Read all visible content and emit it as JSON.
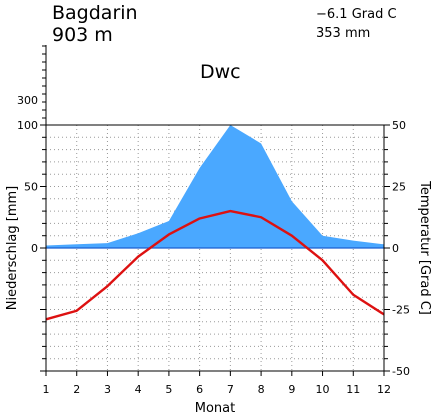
{
  "header": {
    "station": "Bagdarin",
    "elevation": "903 m",
    "mean_temperature": "−6.1 Grad C",
    "annual_precipitation": "353 mm",
    "climate_class": "Dwc"
  },
  "chart_data": {
    "type": "area",
    "xlabel": "Monat",
    "ylabel_left": "Niederschlag [mm]",
    "ylabel_right": "Temperatur [Grad C]",
    "x": [
      1,
      2,
      3,
      4,
      5,
      6,
      7,
      8,
      9,
      10,
      11,
      12
    ],
    "x_tick_labels": [
      "1",
      "2",
      "3",
      "4",
      "5",
      "6",
      "7",
      "8",
      "9",
      "10",
      "11",
      "12"
    ],
    "left_axis": {
      "ylim": [
        -100,
        100
      ],
      "ticks": [
        "0",
        "50",
        "100"
      ],
      "upper_scale_tick": "300"
    },
    "right_axis": {
      "ylim": [
        -50,
        50
      ],
      "ticks": [
        "-50",
        "-25",
        "0",
        "25",
        "50"
      ]
    },
    "grid": true,
    "series": [
      {
        "kind": "precipitation",
        "color": "#4aa8ff",
        "values": [
          2,
          3,
          4,
          12,
          22,
          65,
          100,
          85,
          38,
          10,
          6,
          3
        ]
      },
      {
        "kind": "temperature",
        "color": "#dd1111",
        "values": [
          -29,
          -25.5,
          -15.5,
          -3.5,
          5.5,
          12,
          15,
          12.5,
          5,
          -5,
          -19,
          -27
        ]
      }
    ]
  }
}
